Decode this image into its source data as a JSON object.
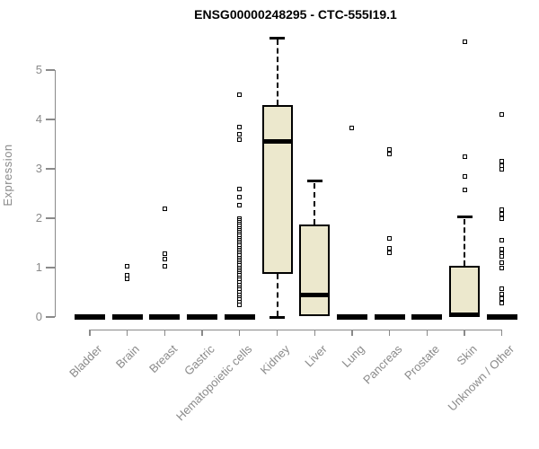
{
  "title": "ENSG00000248295 - CTC-555I19.1",
  "chart_data": {
    "type": "boxplot",
    "title": "ENSG00000248295 - CTC-555I19.1",
    "ylabel": "Expression",
    "xlabel": "",
    "ylim": [
      0,
      5
    ],
    "yticks": [
      0,
      1,
      2,
      3,
      4,
      5
    ],
    "grid": false,
    "legend": false,
    "categories": [
      "Bladder",
      "Brain",
      "Breast",
      "Gastric",
      "Hematopoietic cells",
      "Kidney",
      "Liver",
      "Lung",
      "Pancreas",
      "Prostate",
      "Skin",
      "Unknown / Other"
    ],
    "series": [
      {
        "name": "Bladder",
        "whisker_low": 0,
        "q1": 0,
        "median": 0,
        "q3": 0,
        "whisker_high": 0,
        "outliers": []
      },
      {
        "name": "Brain",
        "whisker_low": 0,
        "q1": 0,
        "median": 0,
        "q3": 0,
        "whisker_high": 0,
        "outliers": [
          1.02,
          0.85,
          0.78
        ]
      },
      {
        "name": "Breast",
        "whisker_low": 0,
        "q1": 0,
        "median": 0,
        "q3": 0,
        "whisker_high": 0,
        "outliers": [
          2.2,
          1.28,
          1.18,
          1.02
        ]
      },
      {
        "name": "Gastric",
        "whisker_low": 0,
        "q1": 0,
        "median": 0,
        "q3": 0,
        "whisker_high": 0,
        "outliers": []
      },
      {
        "name": "Hematopoietic cells",
        "whisker_low": 0,
        "q1": 0,
        "median": 0,
        "q3": 0,
        "whisker_high": 0,
        "outliers": [
          4.5,
          3.85,
          3.7,
          3.6,
          2.6,
          2.42,
          2.27,
          2.0,
          1.96,
          1.92,
          1.88,
          1.84,
          1.8,
          1.76,
          1.72,
          1.68,
          1.64,
          1.6,
          1.56,
          1.52,
          1.48,
          1.44,
          1.4,
          1.36,
          1.32,
          1.28,
          1.24,
          1.2,
          1.16,
          1.12,
          1.08,
          1.04,
          1.0,
          0.96,
          0.92,
          0.88,
          0.84,
          0.8,
          0.75,
          0.7,
          0.65,
          0.6,
          0.55,
          0.5,
          0.45,
          0.4,
          0.35,
          0.3,
          0.25
        ]
      },
      {
        "name": "Kidney",
        "whisker_low": 0,
        "q1": 0.88,
        "median": 3.55,
        "q3": 4.3,
        "whisker_high": 5.65,
        "outliers": []
      },
      {
        "name": "Liver",
        "whisker_low": 0.02,
        "q1": 0.02,
        "median": 0.45,
        "q3": 1.88,
        "whisker_high": 2.75,
        "outliers": []
      },
      {
        "name": "Lung",
        "whisker_low": 0,
        "q1": 0,
        "median": 0,
        "q3": 0,
        "whisker_high": 0,
        "outliers": [
          3.82
        ]
      },
      {
        "name": "Pancreas",
        "whisker_low": 0,
        "q1": 0,
        "median": 0,
        "q3": 0,
        "whisker_high": 0,
        "outliers": [
          3.4,
          3.3,
          1.6,
          1.4,
          1.3
        ]
      },
      {
        "name": "Prostate",
        "whisker_low": 0,
        "q1": 0,
        "median": 0,
        "q3": 0,
        "whisker_high": 0,
        "outliers": []
      },
      {
        "name": "Skin",
        "whisker_low": 0,
        "q1": 0,
        "median": 0.05,
        "q3": 1.03,
        "whisker_high": 2.02,
        "outliers": [
          5.57,
          3.24,
          2.84,
          2.57
        ]
      },
      {
        "name": "Unknown / Other",
        "whisker_low": 0,
        "q1": 0,
        "median": 0,
        "q3": 0,
        "whisker_high": 0,
        "outliers": [
          4.1,
          3.15,
          3.07,
          3.0,
          2.17,
          2.08,
          2.0,
          1.56,
          1.38,
          1.28,
          1.22,
          1.1,
          1.0,
          0.57,
          0.47,
          0.38,
          0.28
        ]
      }
    ],
    "colors": {
      "box_fill": "#ece8cd",
      "box_border": "#000000",
      "axis": "#8a8a8a",
      "title_color": "#000000"
    }
  }
}
